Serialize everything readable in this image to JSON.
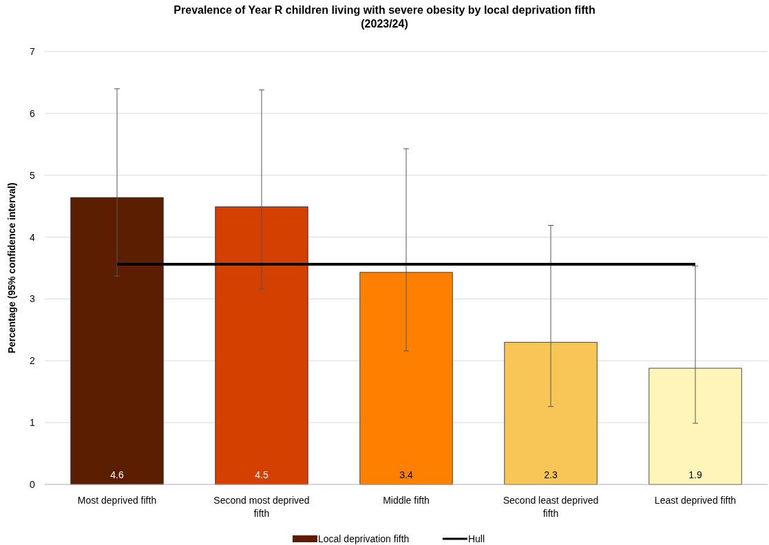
{
  "chart_data": {
    "type": "bar",
    "title": "Prevalence of Year R children living with severe obesity by local deprivation fifth (2023/24)",
    "ylabel": "Percentage (95% confidence interval)",
    "categories": [
      "Most deprived fifth",
      "Second most deprived fifth",
      "Middle fifth",
      "Second least deprived fifth",
      "Least deprived fifth"
    ],
    "series": [
      {
        "name": "Local deprivation fifth",
        "colors": [
          "#5c1e00",
          "#d44000",
          "#ff8000",
          "#f7c656",
          "#fff5b8"
        ],
        "values": [
          4.64,
          4.49,
          3.43,
          2.3,
          1.88
        ],
        "value_labels": [
          "4.6",
          "4.5",
          "3.4",
          "2.3",
          "1.9"
        ],
        "errors": [
          [
            3.37,
            6.4
          ],
          [
            3.16,
            6.38
          ],
          [
            2.16,
            5.43
          ],
          [
            1.26,
            4.19
          ],
          [
            0.99,
            3.53
          ]
        ]
      }
    ],
    "ref_lines": [
      {
        "axis": "y",
        "value": 3.56,
        "label": "Hull",
        "color": "#000000"
      }
    ],
    "ylim": [
      0,
      7
    ],
    "yticks": [
      0,
      1,
      2,
      3,
      4,
      5,
      6,
      7
    ],
    "grid": "y",
    "legend": "bottom"
  }
}
